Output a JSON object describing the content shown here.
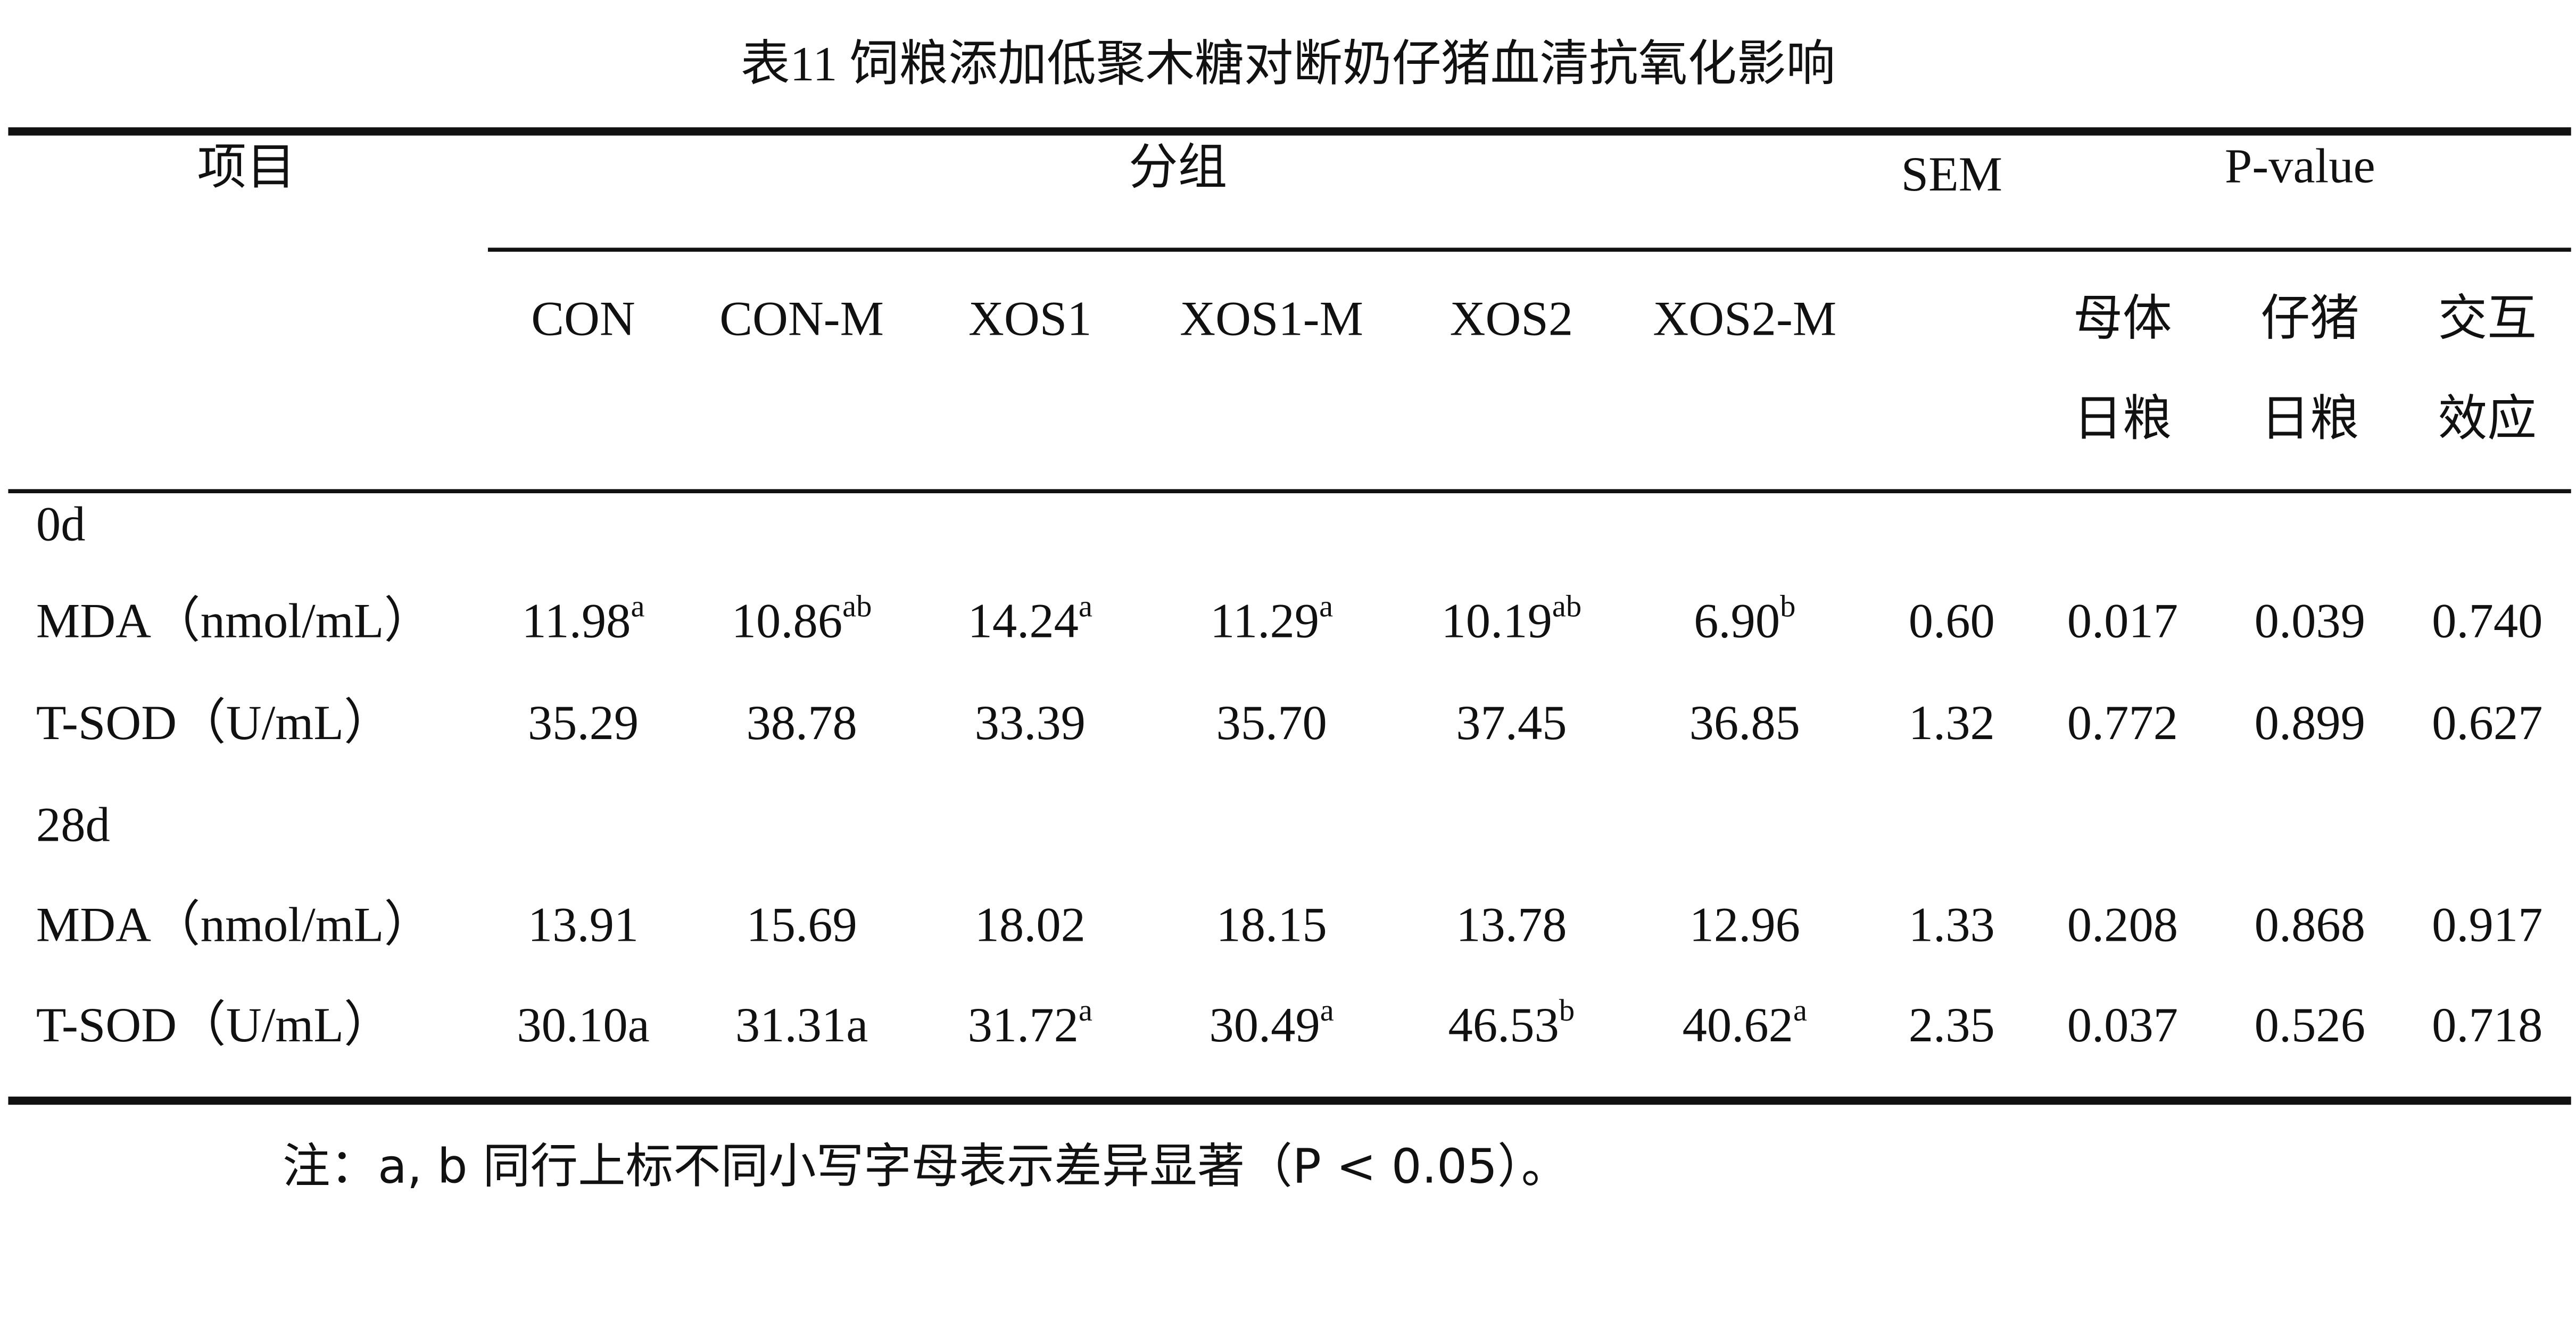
{
  "title": "表11 饲粮添加低聚木糖对断奶仔猪血清抗氧化影响",
  "header": {
    "item": "项目",
    "group": "分组",
    "sem": "SEM",
    "pvalue": "P-value"
  },
  "subheader": {
    "groups": [
      "CON",
      "CON-M",
      "XOS1",
      "XOS1-M",
      "XOS2",
      "XOS2-M"
    ],
    "pvalues": [
      [
        "母体",
        "日粮"
      ],
      [
        "仔猪",
        "日粮"
      ],
      [
        "交互",
        "效应"
      ]
    ]
  },
  "rows": [
    {
      "label": "0d"
    },
    {
      "label": "MDA（nmol/mL）",
      "cells": [
        {
          "text": "11.98",
          "sup": "a"
        },
        {
          "text": "10.86",
          "sup": "ab"
        },
        {
          "text": "14.24",
          "sup": "a"
        },
        {
          "text": "11.29",
          "sup": "a"
        },
        {
          "text": "10.19",
          "sup": "ab"
        },
        {
          "text": "6.90",
          "sup": "b"
        },
        "0.60",
        "0.017",
        "0.039",
        "0.740"
      ]
    },
    {
      "label": "T-SOD（U/mL）",
      "cells": [
        "35.29",
        "38.78",
        "33.39",
        "35.70",
        "37.45",
        "36.85",
        "1.32",
        "0.772",
        "0.899",
        "0.627"
      ]
    },
    {
      "label": "28d"
    },
    {
      "label": "MDA（nmol/mL）",
      "cells": [
        "13.91",
        "15.69",
        "18.02",
        "18.15",
        "13.78",
        "12.96",
        "1.33",
        "0.208",
        "0.868",
        "0.917"
      ]
    },
    {
      "label": "T-SOD（U/mL）",
      "cells": [
        "30.10a",
        "31.31a",
        {
          "text": "31.72",
          "sup": "a"
        },
        {
          "text": "30.49",
          "sup": "a"
        },
        {
          "text": "46.53",
          "sup": "b"
        },
        {
          "text": "40.62",
          "sup": "a"
        },
        "2.35",
        "0.037",
        "0.526",
        "0.718"
      ]
    }
  ],
  "note": "注：a, b 同行上标不同小写字母表示差异显著（P < 0.05）。"
}
